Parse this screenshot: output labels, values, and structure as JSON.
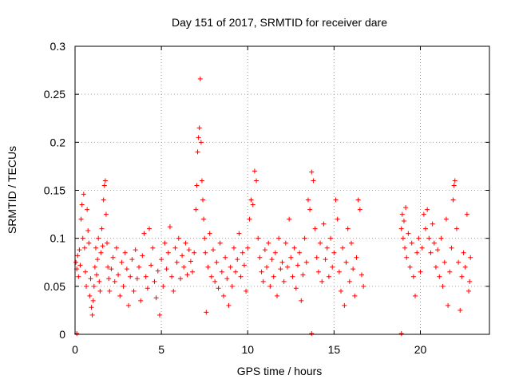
{
  "chart_data": {
    "type": "scatter",
    "title": "Day 151 of 2017, SRMTID for receiver dare",
    "xlabel": "GPS time / hours",
    "ylabel": "SRMTID / TECUs",
    "xlim": [
      0,
      24
    ],
    "ylim": [
      0,
      0.3
    ],
    "xticks": [
      0,
      5,
      10,
      15,
      20
    ],
    "xtick_labels": [
      "0",
      "5",
      "10",
      "15",
      "20"
    ],
    "yticks": [
      0,
      0.05,
      0.1,
      0.15,
      0.2,
      0.25,
      0.3
    ],
    "ytick_labels": [
      "0",
      "0.05",
      "0.1",
      "0.15",
      "0.2",
      "0.25",
      "0.3"
    ],
    "grid": true,
    "marker": "+",
    "color": "#ff0000",
    "series": [
      {
        "name": "SRMTID",
        "points": [
          [
            0.05,
            0.075
          ],
          [
            0.1,
            0.068
          ],
          [
            0.15,
            0.082
          ],
          [
            0.2,
            0.06
          ],
          [
            0.25,
            0.088
          ],
          [
            0.3,
            0.072
          ],
          [
            0.35,
            0.12
          ],
          [
            0.4,
            0.135
          ],
          [
            0.45,
            0.1
          ],
          [
            0.5,
            0.146
          ],
          [
            0.55,
            0.09
          ],
          [
            0.6,
            0.065
          ],
          [
            0.65,
            0.05
          ],
          [
            0.7,
            0.13
          ],
          [
            0.75,
            0.108
          ],
          [
            0.8,
            0.095
          ],
          [
            0.85,
            0.04
          ],
          [
            0.9,
            0.058
          ],
          [
            0.95,
            0.028
          ],
          [
            1.0,
            0.02
          ],
          [
            1.05,
            0.035
          ],
          [
            1.1,
            0.05
          ],
          [
            1.15,
            0.07
          ],
          [
            1.2,
            0.09
          ],
          [
            1.25,
            0.062
          ],
          [
            1.3,
            0.078
          ],
          [
            1.35,
            0.1
          ],
          [
            1.4,
            0.055
          ],
          [
            1.45,
            0.045
          ],
          [
            1.5,
            0.085
          ],
          [
            1.55,
            0.11
          ],
          [
            1.6,
            0.092
          ],
          [
            1.65,
            0.14
          ],
          [
            1.7,
            0.155
          ],
          [
            1.75,
            0.16
          ],
          [
            1.8,
            0.125
          ],
          [
            1.85,
            0.095
          ],
          [
            1.9,
            0.07
          ],
          [
            1.95,
            0.058
          ],
          [
            2.0,
            0.045
          ],
          [
            2.1,
            0.068
          ],
          [
            2.2,
            0.08
          ],
          [
            2.3,
            0.055
          ],
          [
            2.4,
            0.09
          ],
          [
            2.5,
            0.062
          ],
          [
            2.6,
            0.04
          ],
          [
            2.7,
            0.075
          ],
          [
            2.8,
            0.05
          ],
          [
            2.9,
            0.085
          ],
          [
            3.0,
            0.068
          ],
          [
            3.1,
            0.03
          ],
          [
            3.2,
            0.06
          ],
          [
            3.3,
            0.078
          ],
          [
            3.4,
            0.045
          ],
          [
            3.5,
            0.088
          ],
          [
            3.6,
            0.058
          ],
          [
            3.7,
            0.07
          ],
          [
            3.8,
            0.035
          ],
          [
            3.9,
            0.082
          ],
          [
            4.0,
            0.105
          ],
          [
            4.1,
            0.06
          ],
          [
            4.2,
            0.048
          ],
          [
            4.3,
            0.11
          ],
          [
            4.4,
            0.072
          ],
          [
            4.5,
            0.09
          ],
          [
            4.6,
            0.055
          ],
          [
            4.7,
            0.038
          ],
          [
            4.8,
            0.066
          ],
          [
            4.9,
            0.02
          ],
          [
            5.0,
            0.078
          ],
          [
            5.1,
            0.05
          ],
          [
            5.2,
            0.095
          ],
          [
            5.3,
            0.068
          ],
          [
            5.4,
            0.085
          ],
          [
            5.5,
            0.112
          ],
          [
            5.6,
            0.06
          ],
          [
            5.7,
            0.045
          ],
          [
            5.8,
            0.09
          ],
          [
            5.9,
            0.075
          ],
          [
            6.0,
            0.1
          ],
          [
            6.1,
            0.058
          ],
          [
            6.2,
            0.082
          ],
          [
            6.3,
            0.07
          ],
          [
            6.4,
            0.095
          ],
          [
            6.5,
            0.062
          ],
          [
            6.6,
            0.088
          ],
          [
            6.7,
            0.076
          ],
          [
            6.8,
            0.065
          ],
          [
            6.9,
            0.085
          ],
          [
            7.0,
            0.13
          ],
          [
            7.05,
            0.155
          ],
          [
            7.1,
            0.19
          ],
          [
            7.15,
            0.205
          ],
          [
            7.2,
            0.215
          ],
          [
            7.25,
            0.266
          ],
          [
            7.3,
            0.2
          ],
          [
            7.35,
            0.16
          ],
          [
            7.4,
            0.14
          ],
          [
            7.45,
            0.12
          ],
          [
            7.5,
            0.1
          ],
          [
            7.55,
            0.085
          ],
          [
            7.6,
            0.023
          ],
          [
            7.7,
            0.07
          ],
          [
            7.8,
            0.105
          ],
          [
            7.9,
            0.06
          ],
          [
            8.0,
            0.088
          ],
          [
            8.1,
            0.055
          ],
          [
            8.2,
            0.075
          ],
          [
            8.3,
            0.048
          ],
          [
            8.4,
            0.095
          ],
          [
            8.5,
            0.065
          ],
          [
            8.6,
            0.04
          ],
          [
            8.7,
            0.08
          ],
          [
            8.8,
            0.058
          ],
          [
            8.9,
            0.03
          ],
          [
            9.0,
            0.07
          ],
          [
            9.1,
            0.05
          ],
          [
            9.2,
            0.09
          ],
          [
            9.3,
            0.065
          ],
          [
            9.4,
            0.078
          ],
          [
            9.5,
            0.105
          ],
          [
            9.6,
            0.06
          ],
          [
            9.7,
            0.085
          ],
          [
            9.8,
            0.072
          ],
          [
            9.9,
            0.045
          ],
          [
            10.0,
            0.09
          ],
          [
            10.1,
            0.12
          ],
          [
            10.2,
            0.14
          ],
          [
            10.3,
            0.135
          ],
          [
            10.4,
            0.17
          ],
          [
            10.5,
            0.16
          ],
          [
            10.6,
            0.1
          ],
          [
            10.7,
            0.08
          ],
          [
            10.8,
            0.065
          ],
          [
            10.9,
            0.055
          ],
          [
            11.0,
            0.088
          ],
          [
            11.1,
            0.07
          ],
          [
            11.2,
            0.095
          ],
          [
            11.3,
            0.05
          ],
          [
            11.4,
            0.078
          ],
          [
            11.5,
            0.06
          ],
          [
            11.6,
            0.085
          ],
          [
            11.7,
            0.04
          ],
          [
            11.8,
            0.1
          ],
          [
            11.9,
            0.068
          ],
          [
            12.0,
            0.075
          ],
          [
            12.1,
            0.055
          ],
          [
            12.2,
            0.095
          ],
          [
            12.3,
            0.07
          ],
          [
            12.4,
            0.12
          ],
          [
            12.5,
            0.08
          ],
          [
            12.6,
            0.06
          ],
          [
            12.7,
            0.09
          ],
          [
            12.8,
            0.048
          ],
          [
            12.9,
            0.072
          ],
          [
            13.0,
            0.085
          ],
          [
            13.1,
            0.035
          ],
          [
            13.2,
            0.062
          ],
          [
            13.3,
            0.1
          ],
          [
            13.4,
            0.075
          ],
          [
            13.5,
            0.14
          ],
          [
            13.6,
            0.13
          ],
          [
            13.7,
            0.169
          ],
          [
            13.8,
            0.16
          ],
          [
            13.9,
            0.11
          ],
          [
            14.0,
            0.08
          ],
          [
            14.1,
            0.065
          ],
          [
            14.2,
            0.095
          ],
          [
            14.3,
            0.055
          ],
          [
            14.4,
            0.115
          ],
          [
            14.5,
            0.078
          ],
          [
            14.6,
            0.09
          ],
          [
            14.7,
            0.06
          ],
          [
            14.8,
            0.1
          ],
          [
            14.9,
            0.07
          ],
          [
            15.0,
            0.085
          ],
          [
            15.1,
            0.14
          ],
          [
            15.2,
            0.12
          ],
          [
            15.3,
            0.065
          ],
          [
            15.4,
            0.045
          ],
          [
            15.5,
            0.09
          ],
          [
            15.6,
            0.03
          ],
          [
            15.7,
            0.075
          ],
          [
            15.8,
            0.11
          ],
          [
            15.9,
            0.055
          ],
          [
            16.0,
            0.095
          ],
          [
            16.1,
            0.068
          ],
          [
            16.2,
            0.04
          ],
          [
            16.3,
            0.08
          ],
          [
            16.4,
            0.14
          ],
          [
            16.5,
            0.13
          ],
          [
            16.6,
            0.062
          ],
          [
            16.7,
            0.05
          ],
          [
            18.9,
            0.11
          ],
          [
            18.95,
            0.125
          ],
          [
            19.0,
            0.1
          ],
          [
            19.05,
            0.118
          ],
          [
            19.1,
            0.09
          ],
          [
            19.15,
            0.132
          ],
          [
            19.2,
            0.08
          ],
          [
            19.3,
            0.105
          ],
          [
            19.4,
            0.07
          ],
          [
            19.5,
            0.095
          ],
          [
            19.6,
            0.06
          ],
          [
            19.7,
            0.04
          ],
          [
            19.8,
            0.085
          ],
          [
            19.9,
            0.1
          ],
          [
            20.0,
            0.065
          ],
          [
            20.1,
            0.09
          ],
          [
            20.2,
            0.125
          ],
          [
            20.3,
            0.11
          ],
          [
            20.4,
            0.13
          ],
          [
            20.5,
            0.1
          ],
          [
            20.6,
            0.085
          ],
          [
            20.7,
            0.115
          ],
          [
            20.8,
            0.095
          ],
          [
            20.9,
            0.07
          ],
          [
            21.0,
            0.088
          ],
          [
            21.1,
            0.06
          ],
          [
            21.2,
            0.1
          ],
          [
            21.3,
            0.05
          ],
          [
            21.4,
            0.075
          ],
          [
            21.5,
            0.12
          ],
          [
            21.6,
            0.03
          ],
          [
            21.7,
            0.065
          ],
          [
            21.8,
            0.09
          ],
          [
            21.9,
            0.14
          ],
          [
            21.95,
            0.155
          ],
          [
            22.0,
            0.16
          ],
          [
            22.1,
            0.11
          ],
          [
            22.2,
            0.075
          ],
          [
            22.3,
            0.025
          ],
          [
            22.4,
            0.06
          ],
          [
            22.5,
            0.085
          ],
          [
            22.6,
            0.07
          ],
          [
            22.7,
            0.125
          ],
          [
            22.8,
            0.045
          ],
          [
            22.85,
            0.055
          ],
          [
            22.9,
            0.08
          ]
        ]
      }
    ],
    "zero_markers": [
      0.1,
      13.7,
      18.9
    ]
  }
}
